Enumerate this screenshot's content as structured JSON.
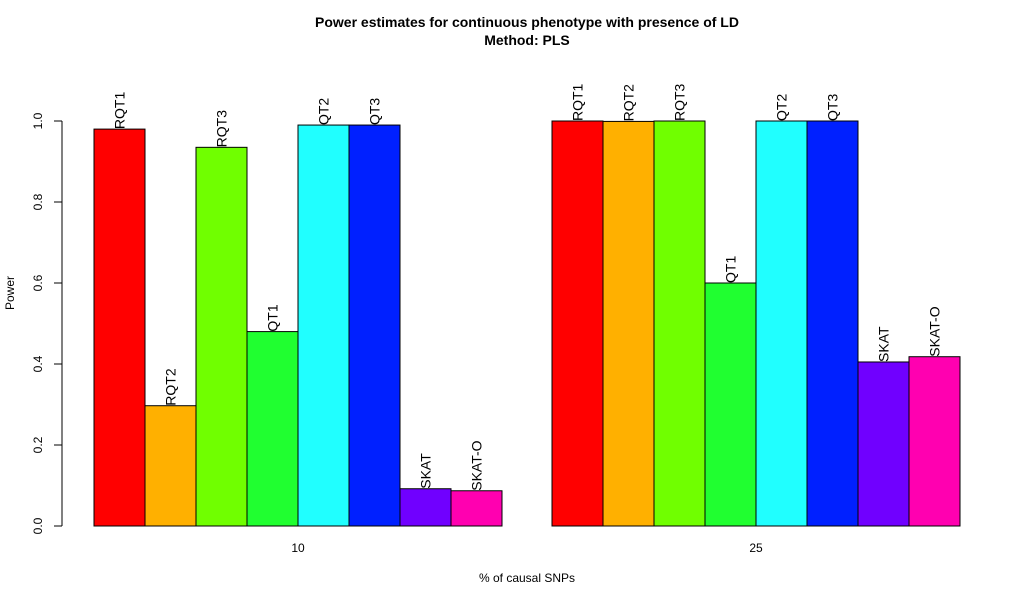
{
  "chart_data": {
    "type": "bar",
    "title": "Power estimates for continuous phenotype with presence of LD",
    "subtitle": "Method: PLS",
    "xlabel": "% of causal SNPs",
    "ylabel": "Power",
    "ylim": [
      0,
      1.0
    ],
    "yticks": [
      "0.0",
      "0.2",
      "0.4",
      "0.6",
      "0.8",
      "1.0"
    ],
    "grid": false,
    "groups": [
      {
        "label": "10",
        "bars": [
          {
            "name": "RQT1",
            "value": 0.98,
            "color": "#ff0000"
          },
          {
            "name": "RQT2",
            "value": 0.297,
            "color": "#ffb000"
          },
          {
            "name": "RQT3",
            "value": 0.935,
            "color": "#70ff00"
          },
          {
            "name": "QT1",
            "value": 0.48,
            "color": "#20ff30"
          },
          {
            "name": "QT2",
            "value": 0.99,
            "color": "#20ffff"
          },
          {
            "name": "QT3",
            "value": 0.99,
            "color": "#0020ff"
          },
          {
            "name": "SKAT",
            "value": 0.092,
            "color": "#7000ff"
          },
          {
            "name": "SKAT-O",
            "value": 0.087,
            "color": "#ff00b0"
          }
        ]
      },
      {
        "label": "25",
        "bars": [
          {
            "name": "RQT1",
            "value": 1.0,
            "color": "#ff0000"
          },
          {
            "name": "RQT2",
            "value": 0.999,
            "color": "#ffb000"
          },
          {
            "name": "RQT3",
            "value": 1.0,
            "color": "#70ff00"
          },
          {
            "name": "QT1",
            "value": 0.6,
            "color": "#20ff30"
          },
          {
            "name": "QT2",
            "value": 1.0,
            "color": "#20ffff"
          },
          {
            "name": "QT3",
            "value": 1.0,
            "color": "#0020ff"
          },
          {
            "name": "SKAT",
            "value": 0.405,
            "color": "#7000ff"
          },
          {
            "name": "SKAT-O",
            "value": 0.418,
            "color": "#ff00b0"
          }
        ]
      }
    ]
  }
}
